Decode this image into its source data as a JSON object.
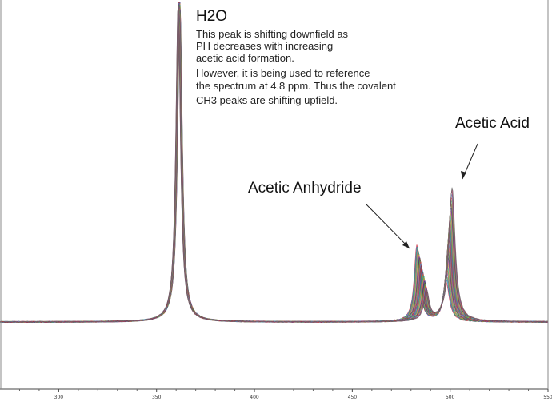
{
  "chart_data": {
    "type": "line",
    "xlim": [
      270,
      550
    ],
    "ylim": [
      -12,
      100
    ],
    "x_ticks": [
      300,
      350,
      400,
      450,
      500,
      550
    ],
    "x_tick_labels": [
      "300",
      "350",
      "400",
      "450",
      "500",
      "550"
    ],
    "grid": false,
    "legend": "none",
    "series_count": 30,
    "peaks": [
      {
        "name": "H2O",
        "x_start": 362,
        "x_end": 361,
        "height": 100,
        "width": 1.4
      },
      {
        "name": "Acetic Anhydride",
        "x_start": 483,
        "x_end": 488,
        "height_start": 24,
        "height_end": 9,
        "width": 1.6
      },
      {
        "name": "Acetic Acid",
        "x_start": 498,
        "x_end": 501,
        "height_start": 12,
        "height_end": 42,
        "width": 1.9
      }
    ],
    "annotations": {
      "h2o_title": "H2O",
      "h2o_lines": [
        "This peak is shifting downfield as",
        "PH decreases with increasing",
        "acetic acid formation.",
        "However, it is being used to reference",
        "the spectrum at 4.8 ppm. Thus the covalent",
        "CH3 peaks are shifting upfield."
      ],
      "acid_label": "Acetic Acid",
      "anhydride_label": "Acetic Anhydride"
    },
    "palette": [
      "#cc2233",
      "#2a7fd4",
      "#2e9e3e",
      "#7a3fb0",
      "#d98a1c",
      "#1aa39a",
      "#b8b22a",
      "#d04a9a",
      "#2f3c8a",
      "#7a4a22",
      "#3fae74",
      "#e0402a",
      "#5a8fd0",
      "#9a1f4a",
      "#6b6b6b"
    ]
  }
}
